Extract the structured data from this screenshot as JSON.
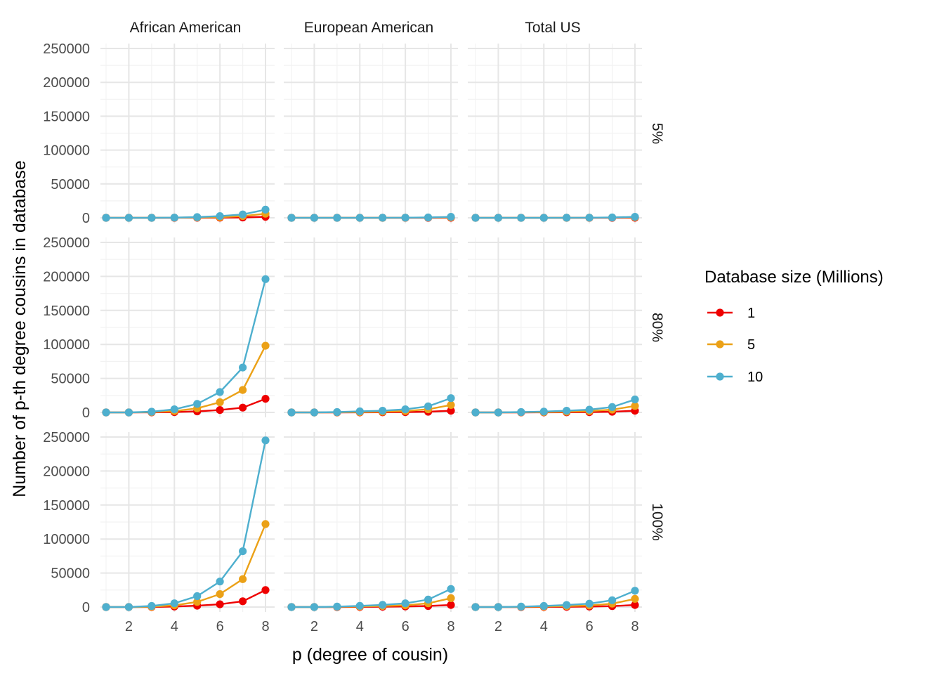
{
  "chart_data": {
    "type": "line",
    "title": "",
    "xlabel": "p (degree of cousin)",
    "ylabel": "Number of p-th degree cousins in database",
    "x": [
      1,
      2,
      3,
      4,
      5,
      6,
      7,
      8
    ],
    "xlim": [
      0.8,
      8.2
    ],
    "ylim": [
      0,
      250000
    ],
    "xticks": [
      2,
      4,
      6,
      8
    ],
    "yticks": [
      0,
      50000,
      100000,
      150000,
      200000,
      250000
    ],
    "grid": true,
    "legend": {
      "title": "Database size (Millions)",
      "position": "right",
      "entries": [
        "1",
        "5",
        "10"
      ]
    },
    "series_colors": {
      "1": "#ee0000",
      "5": "#eba117",
      "10": "#4eafce"
    },
    "columns": [
      "African American",
      "European American",
      "Total US"
    ],
    "rows": [
      "5%",
      "80%",
      "100%"
    ],
    "panels": [
      {
        "column": "African American",
        "row": "5%",
        "series": [
          {
            "name": "1",
            "values": [
              0,
              0,
              0,
              0,
              100,
              200,
              500,
              1500
            ]
          },
          {
            "name": "5",
            "values": [
              0,
              0,
              0,
              200,
              500,
              1000,
              2500,
              6000
            ]
          },
          {
            "name": "10",
            "values": [
              0,
              0,
              0,
              300,
              1000,
              2500,
              5000,
              12000
            ]
          }
        ]
      },
      {
        "column": "European American",
        "row": "5%",
        "series": [
          {
            "name": "1",
            "values": [
              0,
              0,
              0,
              0,
              0,
              0,
              0,
              100
            ]
          },
          {
            "name": "5",
            "values": [
              0,
              0,
              0,
              0,
              0,
              100,
              300,
              700
            ]
          },
          {
            "name": "10",
            "values": [
              0,
              0,
              0,
              0,
              100,
              200,
              500,
              1500
            ]
          }
        ]
      },
      {
        "column": "Total US",
        "row": "5%",
        "series": [
          {
            "name": "1",
            "values": [
              0,
              0,
              0,
              0,
              0,
              0,
              0,
              100
            ]
          },
          {
            "name": "5",
            "values": [
              0,
              0,
              0,
              0,
              0,
              100,
              300,
              800
            ]
          },
          {
            "name": "10",
            "values": [
              0,
              0,
              0,
              0,
              100,
              200,
              500,
              1500
            ]
          }
        ]
      },
      {
        "column": "African American",
        "row": "80%",
        "series": [
          {
            "name": "1",
            "values": [
              0,
              0,
              100,
              500,
              1500,
              3500,
              7000,
              20000
            ]
          },
          {
            "name": "5",
            "values": [
              0,
              0,
              500,
              2000,
              6000,
              15000,
              33000,
              98000
            ]
          },
          {
            "name": "10",
            "values": [
              0,
              0,
              1000,
              4500,
              12500,
              30000,
              66000,
              196000
            ]
          }
        ]
      },
      {
        "column": "European American",
        "row": "80%",
        "series": [
          {
            "name": "1",
            "values": [
              0,
              0,
              0,
              100,
              200,
              500,
              1000,
              2500
            ]
          },
          {
            "name": "5",
            "values": [
              0,
              0,
              200,
              500,
              1000,
              2000,
              4500,
              11000
            ]
          },
          {
            "name": "10",
            "values": [
              0,
              0,
              500,
              1500,
              2500,
              4500,
              9000,
              21000
            ]
          }
        ]
      },
      {
        "column": "Total US",
        "row": "80%",
        "series": [
          {
            "name": "1",
            "values": [
              0,
              0,
              0,
              100,
              200,
              500,
              1000,
              2500
            ]
          },
          {
            "name": "5",
            "values": [
              0,
              0,
              200,
              500,
              1000,
              2000,
              4000,
              9500
            ]
          },
          {
            "name": "10",
            "values": [
              0,
              0,
              500,
              1200,
              2500,
              4000,
              8000,
              19000
            ]
          }
        ]
      },
      {
        "column": "African American",
        "row": "100%",
        "series": [
          {
            "name": "1",
            "values": [
              0,
              0,
              100,
              700,
              2000,
              4000,
              8500,
              25000
            ]
          },
          {
            "name": "5",
            "values": [
              0,
              0,
              500,
              2500,
              7500,
              19000,
              41000,
              122000
            ]
          },
          {
            "name": "10",
            "values": [
              0,
              0,
              1500,
              5500,
              16000,
              37500,
              82000,
              245000
            ]
          }
        ]
      },
      {
        "column": "European American",
        "row": "100%",
        "series": [
          {
            "name": "1",
            "values": [
              0,
              0,
              0,
              200,
              400,
              800,
              1500,
              3000
            ]
          },
          {
            "name": "5",
            "values": [
              0,
              0,
              300,
              800,
              1500,
              2500,
              5500,
              13000
            ]
          },
          {
            "name": "10",
            "values": [
              0,
              0,
              600,
              1800,
              3200,
              5500,
              11000,
              26500
            ]
          }
        ]
      },
      {
        "column": "Total US",
        "row": "100%",
        "series": [
          {
            "name": "1",
            "values": [
              0,
              0,
              0,
              200,
              300,
              700,
              1300,
              3000
            ]
          },
          {
            "name": "5",
            "values": [
              0,
              0,
              300,
              700,
              1300,
              2300,
              5000,
              12000
            ]
          },
          {
            "name": "10",
            "values": [
              0,
              0,
              600,
              1500,
              3000,
              5000,
              10000,
              24000
            ]
          }
        ]
      }
    ]
  }
}
